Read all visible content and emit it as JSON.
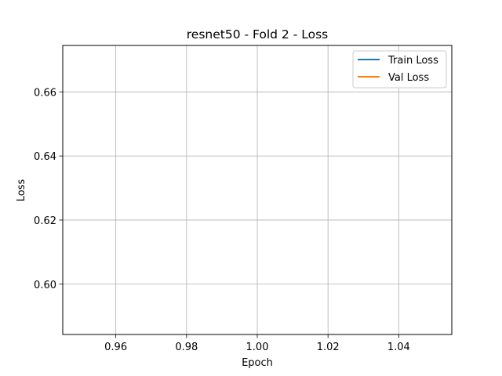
{
  "chart_data": {
    "type": "line",
    "title": "resnet50 - Fold 2 - Loss",
    "xlabel": "Epoch",
    "ylabel": "Loss",
    "xlim": [
      0.945,
      1.055
    ],
    "ylim": [
      0.5843,
      0.6745
    ],
    "xticks": [
      0.96,
      0.98,
      1.0,
      1.02,
      1.04
    ],
    "xtick_labels": [
      "0.96",
      "0.98",
      "1.00",
      "1.02",
      "1.04"
    ],
    "yticks": [
      0.6,
      0.62,
      0.64,
      0.66
    ],
    "ytick_labels": [
      "0.60",
      "0.62",
      "0.64",
      "0.66"
    ],
    "grid": true,
    "legend_position": "top-right",
    "series": [
      {
        "name": "Train Loss",
        "color": "#1f77b4",
        "x": [],
        "y": []
      },
      {
        "name": "Val Loss",
        "color": "#ff7f0e",
        "x": [],
        "y": []
      }
    ]
  }
}
